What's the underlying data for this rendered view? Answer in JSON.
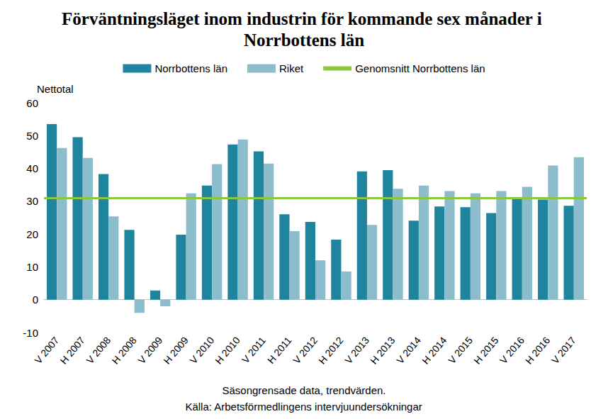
{
  "chart_data": {
    "type": "bar",
    "title": "Förväntningsläget inom industrin för kommande sex månader i Norrbottens län",
    "ylabel": "Nettotal",
    "xlabel": "Säsongrensade data, trendvärden.",
    "source": "Källa: Arbetsförmedlingens intervjuundersökningar",
    "categories": [
      "V 2007",
      "H 2007",
      "V 2008",
      "H 2008",
      "V 2009",
      "H 2009",
      "V 2010",
      "H 2010",
      "V 2011",
      "H 2011",
      "V 2012",
      "H 2012",
      "V 2013",
      "H 2013",
      "V 2014",
      "H 2014",
      "V 2015",
      "H 2015",
      "V 2016",
      "H 2016",
      "V 2017"
    ],
    "series": [
      {
        "name": "Norrbottens län",
        "color": "#1f849e",
        "values": [
          53.5,
          49.5,
          38.3,
          21.3,
          2.8,
          19.8,
          34.8,
          47.3,
          45.2,
          26.0,
          23.7,
          18.3,
          39.1,
          39.5,
          24.1,
          28.4,
          28.2,
          26.4,
          31.0,
          30.5,
          28.6
        ]
      },
      {
        "name": "Riket",
        "color": "#8cbdcc",
        "values": [
          46.2,
          43.2,
          25.4,
          -4.0,
          -2.0,
          32.4,
          41.3,
          48.8,
          41.5,
          20.9,
          12.0,
          8.6,
          22.8,
          33.8,
          34.8,
          33.1,
          32.4,
          33.1,
          34.4,
          40.9,
          43.4
        ]
      }
    ],
    "reference_line": {
      "name": "Genomsnitt Norrbottens län",
      "value": 31,
      "color": "#8dc63f"
    },
    "ylim": [
      -10,
      60
    ],
    "yticks": [
      -10,
      0,
      10,
      20,
      30,
      40,
      50,
      60
    ],
    "grid": false,
    "legend": "top"
  }
}
